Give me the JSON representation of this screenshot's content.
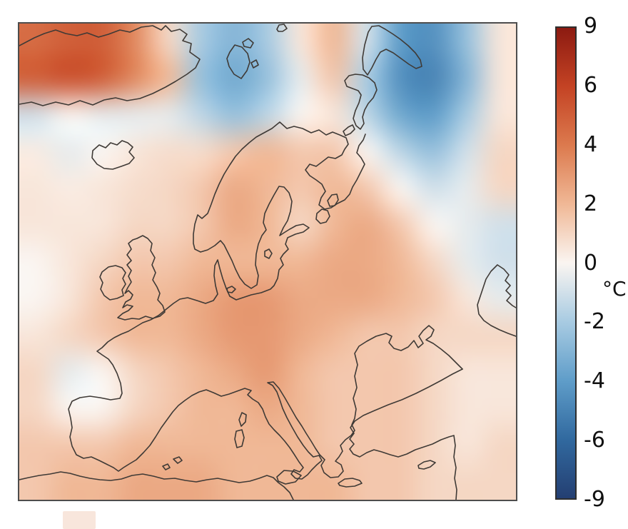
{
  "figure": {
    "description": "Near-surface temperature anomaly map over Europe and the North Atlantic with coastlines and a diverging red-blue colorbar"
  },
  "colorbar": {
    "unit": "°C",
    "ticks": [
      "9",
      "6",
      "4",
      "2",
      "0",
      "-2",
      "-4",
      "-6",
      "-9"
    ],
    "anchors": [
      {
        "value": 9,
        "color": "#8c1a11"
      },
      {
        "value": 6,
        "color": "#c44324"
      },
      {
        "value": 4,
        "color": "#dc7a4e"
      },
      {
        "value": 2,
        "color": "#f0b896"
      },
      {
        "value": 0,
        "color": "#faf5f1"
      },
      {
        "value": -2,
        "color": "#a8cbe2"
      },
      {
        "value": -4,
        "color": "#5f9dc9"
      },
      {
        "value": -6,
        "color": "#31699f"
      },
      {
        "value": -9,
        "color": "#243f72"
      }
    ]
  },
  "chart_data": {
    "type": "heatmap",
    "title": "",
    "region": "Europe / North Atlantic / Arctic seas",
    "unit": "°C",
    "colorbar_ticks": [
      9,
      6,
      4,
      2,
      0,
      -2,
      -4,
      -6,
      -9
    ],
    "colorbar_orientation": "vertical-right",
    "colormap": "diverging red-white-blue (warm positive, cool negative)",
    "grid": {
      "note": "temperature anomaly (deg C) estimated on a 15x13 grid spanning the map, row 0 = north/top, col 0 = west/left",
      "cols": 15,
      "rows": 13,
      "values": [
        [
          4.5,
          5.0,
          5.0,
          3.5,
          1.0,
          -2.0,
          -3.0,
          -2.0,
          0.5,
          2.0,
          -1.0,
          -4.0,
          -4.5,
          -2.5,
          0.5
        ],
        [
          5.0,
          5.5,
          5.0,
          3.5,
          2.0,
          -2.5,
          -3.5,
          -2.5,
          -0.5,
          1.5,
          -2.0,
          -4.5,
          -5.0,
          -3.0,
          0.5
        ],
        [
          -1.0,
          0.0,
          -0.5,
          -0.5,
          -0.5,
          -1.5,
          -2.5,
          -1.5,
          0.0,
          0.5,
          -1.5,
          -3.5,
          -4.0,
          -2.0,
          0.5
        ],
        [
          0.3,
          -0.5,
          0.0,
          0.5,
          0.8,
          0.8,
          1.5,
          2.0,
          1.5,
          1.5,
          0.0,
          -1.5,
          -2.5,
          -1.0,
          1.0
        ],
        [
          0.5,
          0.3,
          0.5,
          0.8,
          1.0,
          1.5,
          2.5,
          2.0,
          1.5,
          2.0,
          1.5,
          0.0,
          -1.0,
          -0.5,
          1.0
        ],
        [
          0.5,
          0.5,
          0.5,
          1.0,
          1.0,
          1.5,
          2.5,
          2.0,
          1.0,
          2.0,
          2.5,
          1.5,
          0.0,
          -0.5,
          -1.0
        ],
        [
          0.0,
          0.5,
          1.0,
          1.5,
          1.5,
          2.0,
          2.0,
          2.0,
          2.0,
          2.5,
          2.5,
          2.0,
          1.0,
          -0.5,
          -1.0
        ],
        [
          0.0,
          0.5,
          1.5,
          2.0,
          2.0,
          2.5,
          3.0,
          3.0,
          2.5,
          2.5,
          2.5,
          2.0,
          1.5,
          0.5,
          -0.5
        ],
        [
          0.5,
          1.0,
          1.5,
          2.0,
          2.0,
          2.5,
          3.0,
          3.0,
          2.5,
          2.0,
          1.5,
          1.5,
          1.0,
          1.0,
          1.0
        ],
        [
          1.0,
          -0.5,
          0.0,
          1.0,
          1.5,
          2.0,
          2.5,
          3.0,
          2.0,
          1.5,
          1.5,
          1.5,
          1.0,
          0.5,
          0.5
        ],
        [
          1.0,
          0.0,
          0.0,
          1.0,
          1.5,
          2.0,
          2.0,
          2.5,
          2.0,
          1.5,
          1.5,
          1.5,
          1.0,
          0.5,
          0.5
        ],
        [
          1.5,
          1.5,
          1.5,
          2.0,
          2.0,
          2.0,
          2.0,
          2.0,
          2.0,
          1.5,
          1.5,
          1.5,
          1.0,
          0.5,
          1.0
        ],
        [
          1.5,
          2.0,
          2.0,
          2.5,
          2.5,
          2.5,
          2.0,
          2.0,
          2.0,
          2.0,
          1.5,
          1.5,
          1.0,
          1.0,
          1.0
        ]
      ]
    },
    "hotspots": [
      {
        "area": "Greenland / north-west corner",
        "anomaly_c": 5.0
      },
      {
        "area": "Svalbard and surrounding sea",
        "anomaly_c": -3.5
      },
      {
        "area": "Novaya Zemlya / Barents-Kara seas",
        "anomaly_c": -5.0
      },
      {
        "area": "Greenland Sea diagonal band",
        "anomaly_c": -1.5
      },
      {
        "area": "Central and eastern Europe",
        "anomaly_c": 3.0
      },
      {
        "area": "Mediterranean and North Africa",
        "anomaly_c": 2.0
      },
      {
        "area": "Offshore north-west Iberia",
        "anomaly_c": -0.5
      },
      {
        "area": "South-east corner (Middle East)",
        "anomaly_c": 0.5
      }
    ],
    "overlays": [
      "coastlines of Europe, Greenland, Iceland, Svalbard, Novaya Zemlya, North Africa, Black Sea, Caspian Sea"
    ]
  }
}
